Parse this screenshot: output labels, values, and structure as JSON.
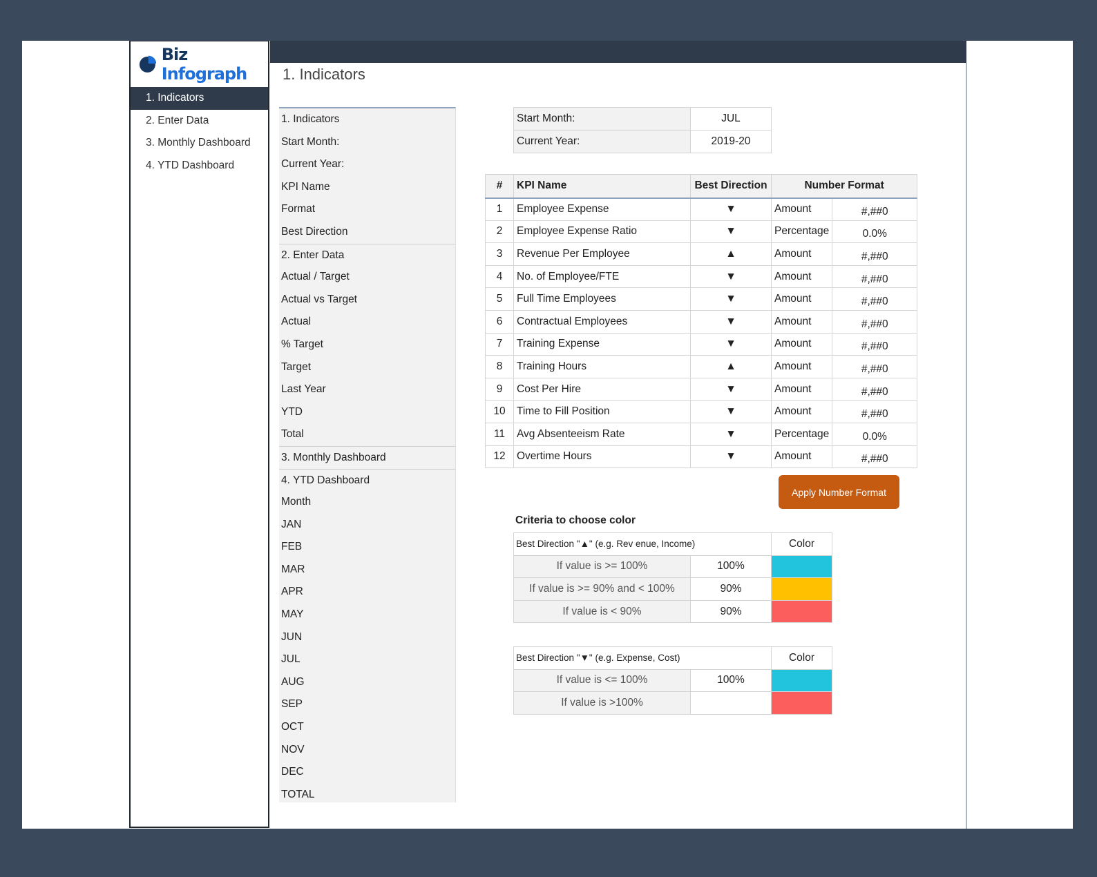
{
  "brand": {
    "name_part1": "Biz",
    "name_part2": "Infograph"
  },
  "nav": {
    "items": [
      {
        "label": "1. Indicators",
        "active": true
      },
      {
        "label": "2. Enter Data",
        "active": false
      },
      {
        "label": "3. Monthly Dashboard",
        "active": false
      },
      {
        "label": "4. YTD Dashboard",
        "active": false
      }
    ]
  },
  "page_title": "1. Indicators",
  "sheet_list": [
    "1. Indicators",
    "Start Month:",
    "Current Year:",
    "KPI Name",
    "Format",
    "Best Direction",
    "2. Enter Data",
    "Actual / Target",
    "Actual vs Target",
    "Actual",
    "% Target",
    "Target",
    "Last Year",
    "YTD",
    "Total",
    "3. Monthly Dashboard",
    "4. YTD Dashboard",
    "Month",
    "JAN",
    "FEB",
    "MAR",
    "APR",
    "MAY",
    "JUN",
    "JUL",
    "AUG",
    "SEP",
    "OCT",
    "NOV",
    "DEC",
    "TOTAL"
  ],
  "settings": {
    "start_month_label": "Start Month:",
    "start_month_value": "JUL",
    "current_year_label": "Current Year:",
    "current_year_value": "2019-20"
  },
  "kpi_table": {
    "headers": {
      "num": "#",
      "name": "KPI Name",
      "direction": "Best Direction",
      "format": "Number Format"
    },
    "rows": [
      {
        "num": "1",
        "name": "Employee Expense",
        "direction": "▼",
        "format": "Amount",
        "code": "#,##0"
      },
      {
        "num": "2",
        "name": "Employee Expense Ratio",
        "direction": "▼",
        "format": "Percentage",
        "code": "0.0%"
      },
      {
        "num": "3",
        "name": "Revenue Per Employee",
        "direction": "▲",
        "format": "Amount",
        "code": "#,##0"
      },
      {
        "num": "4",
        "name": "No. of Employee/FTE",
        "direction": "▼",
        "format": "Amount",
        "code": "#,##0"
      },
      {
        "num": "5",
        "name": "Full Time Employees",
        "direction": "▼",
        "format": "Amount",
        "code": "#,##0"
      },
      {
        "num": "6",
        "name": "Contractual Employees",
        "direction": "▼",
        "format": "Amount",
        "code": "#,##0"
      },
      {
        "num": "7",
        "name": "Training Expense",
        "direction": "▼",
        "format": "Amount",
        "code": "#,##0"
      },
      {
        "num": "8",
        "name": "Training Hours",
        "direction": "▲",
        "format": "Amount",
        "code": "#,##0"
      },
      {
        "num": "9",
        "name": "Cost Per Hire",
        "direction": "▼",
        "format": "Amount",
        "code": "#,##0"
      },
      {
        "num": "10",
        "name": "Time to Fill Position",
        "direction": "▼",
        "format": "Amount",
        "code": "#,##0"
      },
      {
        "num": "11",
        "name": "Avg Absenteeism Rate",
        "direction": "▼",
        "format": "Percentage",
        "code": "0.0%"
      },
      {
        "num": "12",
        "name": "Overtime Hours",
        "direction": "▼",
        "format": "Amount",
        "code": "#,##0"
      }
    ]
  },
  "apply_button_label": "Apply Number Format",
  "criteria": {
    "title": "Criteria to choose color",
    "up": {
      "header": "Best Direction \"▲\" (e.g. Rev enue, Income)",
      "color_header": "Color",
      "rows": [
        {
          "condition": "If value is >= 100%",
          "value": "100%",
          "color": "#22c3dc"
        },
        {
          "condition": "If value is >= 90% and < 100%",
          "value": "90%",
          "color": "#ffc000"
        },
        {
          "condition": "If value is < 90%",
          "value": "90%",
          "color": "#fc5d5d"
        }
      ]
    },
    "down": {
      "header": "Best Direction \"▼\" (e.g. Expense, Cost)",
      "color_header": "Color",
      "rows": [
        {
          "condition": "If value is <= 100%",
          "value": "100%",
          "color": "#22c3dc"
        },
        {
          "condition": "If value is >100%",
          "value": "",
          "color": "#fc5d5d"
        }
      ]
    }
  }
}
